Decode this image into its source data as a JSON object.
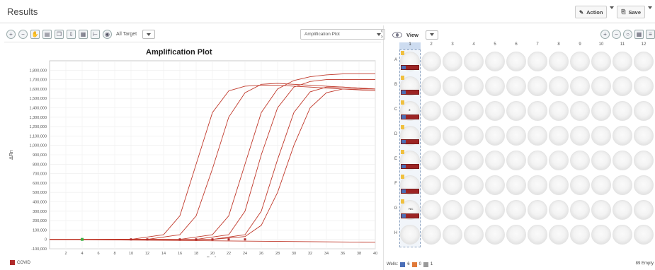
{
  "header": {
    "title": "Results",
    "action_label": "Action",
    "save_label": "Save"
  },
  "left_toolbar": {
    "target_label": "All Target",
    "plot_select": "Amplification Plot"
  },
  "right_toolbar": {
    "view_label": "View"
  },
  "chart_data": {
    "type": "line",
    "title": "Amplification Plot",
    "xlabel": "Cycle",
    "ylabel": "ΔRn",
    "xlim": [
      0,
      40
    ],
    "ylim": [
      -100000,
      1900000
    ],
    "x_ticks": [
      "2",
      "4",
      "6",
      "8",
      "10",
      "12",
      "14",
      "16",
      "18",
      "20",
      "22",
      "24",
      "26",
      "28",
      "30",
      "32",
      "34",
      "36",
      "38",
      "40"
    ],
    "y_ticks": [
      "1,800,000",
      "1,700,000",
      "1,600,000",
      "1,500,000",
      "1,400,000",
      "1,300,000",
      "1,200,000",
      "1,100,000",
      "1,000,000",
      "900,000",
      "800,000",
      "700,000",
      "600,000",
      "500,000",
      "400,000",
      "300,000",
      "200,000",
      "100,000",
      "0",
      "-100,000"
    ],
    "grid": true,
    "series": [
      {
        "x": [
          0,
          10,
          14,
          16,
          18,
          20,
          22,
          24,
          26,
          28,
          30,
          32,
          34,
          36,
          38,
          40
        ],
        "values": [
          0,
          0,
          50000,
          250000,
          800000,
          1350000,
          1580000,
          1630000,
          1640000,
          1640000,
          1630000,
          1620000,
          1610000,
          1600000,
          1590000,
          1580000
        ]
      },
      {
        "x": [
          0,
          12,
          16,
          18,
          20,
          22,
          24,
          26,
          28,
          30,
          32,
          34,
          36,
          38,
          40
        ],
        "values": [
          0,
          0,
          50000,
          250000,
          750000,
          1300000,
          1560000,
          1650000,
          1660000,
          1650000,
          1640000,
          1630000,
          1620000,
          1610000,
          1600000
        ]
      },
      {
        "x": [
          0,
          16,
          20,
          22,
          24,
          26,
          28,
          30,
          32,
          34,
          36,
          38,
          40
        ],
        "values": [
          0,
          0,
          50000,
          250000,
          800000,
          1350000,
          1600000,
          1690000,
          1730000,
          1750000,
          1760000,
          1760000,
          1760000
        ]
      },
      {
        "x": [
          0,
          18,
          22,
          24,
          26,
          28,
          30,
          32,
          34,
          36,
          38,
          40
        ],
        "values": [
          0,
          0,
          50000,
          300000,
          900000,
          1400000,
          1620000,
          1680000,
          1700000,
          1700000,
          1700000,
          1700000
        ]
      },
      {
        "x": [
          0,
          20,
          24,
          26,
          28,
          30,
          32,
          34,
          36,
          38,
          40
        ],
        "values": [
          0,
          0,
          50000,
          300000,
          850000,
          1350000,
          1570000,
          1620000,
          1620000,
          1610000,
          1600000
        ]
      },
      {
        "x": [
          0,
          20,
          24,
          26,
          28,
          30,
          32,
          34,
          36,
          38,
          40
        ],
        "values": [
          0,
          0,
          30000,
          150000,
          500000,
          1000000,
          1400000,
          1560000,
          1600000,
          1600000,
          1600000
        ]
      },
      {
        "x": [
          0,
          40
        ],
        "values": [
          0,
          -30000
        ]
      }
    ]
  },
  "legend": {
    "label": "COVID",
    "color": "#b02b2b"
  },
  "plate": {
    "columns": [
      "1",
      "2",
      "3",
      "4",
      "5",
      "6",
      "7",
      "8",
      "9",
      "10",
      "11",
      "12"
    ],
    "rows": [
      "A",
      "B",
      "C",
      "D",
      "E",
      "F",
      "G",
      "H"
    ],
    "samples": [
      {
        "row": 0,
        "num": ""
      },
      {
        "row": 1,
        "num": ""
      },
      {
        "row": 2,
        "num": "3"
      },
      {
        "row": 3,
        "num": ""
      },
      {
        "row": 4,
        "num": ""
      },
      {
        "row": 5,
        "num": ""
      },
      {
        "row": 6,
        "num": "NC"
      }
    ]
  },
  "status": {
    "wells_label": "Wells:",
    "count_unknown": "6",
    "count_ntc": "0",
    "count_other": "1",
    "empty": "89 Empty"
  }
}
